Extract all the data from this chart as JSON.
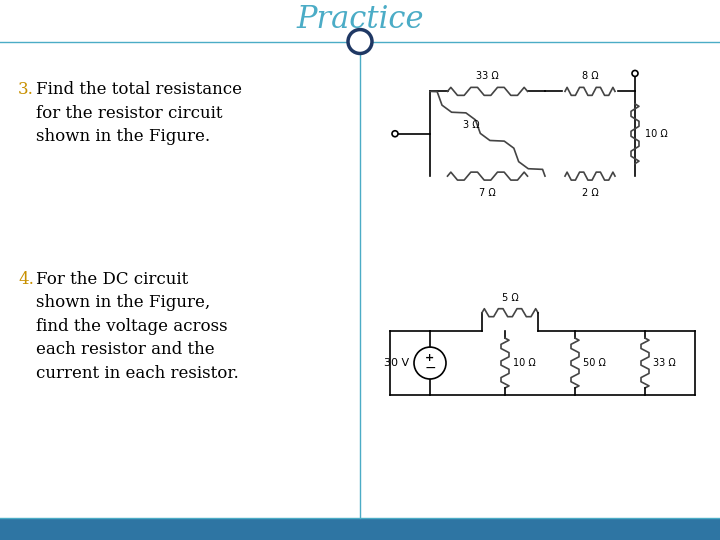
{
  "title": "Practice",
  "title_color": "#4BACC6",
  "title_fontsize": 22,
  "background_color": "#FFFFFF",
  "border_color": "#4BACC6",
  "footer_color": "#2E75A3",
  "item3_number": "3.",
  "item3_number_color": "#C89000",
  "item3_text": "Find the total resistance\nfor the resistor circuit\nshown in the Figure.",
  "item4_number": "4.",
  "item4_number_color": "#C89000",
  "item4_text": "For the DC circuit\nshown in the Figure,\nfind the voltage across\neach resistor and the\ncurrent in each resistor.",
  "circle_color": "#1F3864",
  "line_color": "#000000",
  "resistor_color": "#444444",
  "text_color": "#000000",
  "label_fontsize": 7,
  "body_fontsize": 12
}
